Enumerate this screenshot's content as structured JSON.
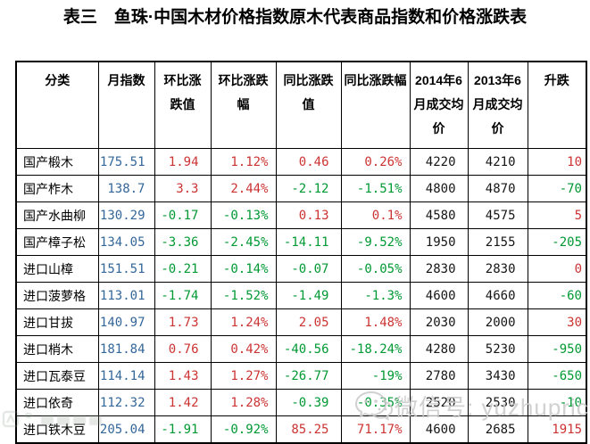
{
  "title": "表三　鱼珠·中国木材价格指数原木代表商品指数和价格涨跌表",
  "table": {
    "header_lines": [
      [
        "分类"
      ],
      [
        "月指数"
      ],
      [
        "环比涨",
        "跌值"
      ],
      [
        "环比涨跌",
        "幅"
      ],
      [
        "同比涨跌",
        "值"
      ],
      [
        "同比涨跌幅"
      ],
      [
        "2014年6",
        "月成交均",
        "价"
      ],
      [
        "2013年6",
        "月成交均",
        "价"
      ],
      [
        "升跌"
      ]
    ],
    "rows": [
      {
        "category": "国产椴木",
        "month_index": "175.51",
        "mom_value": "1.94",
        "mom_pct": "1.12%",
        "yoy_value": "0.46",
        "yoy_pct": "0.26%",
        "price_2014": "4220",
        "price_2013": "4210",
        "change": "10"
      },
      {
        "category": "国产柞木",
        "month_index": "138.7",
        "mom_value": "3.3",
        "mom_pct": "2.44%",
        "yoy_value": "-2.12",
        "yoy_pct": "-1.51%",
        "price_2014": "4800",
        "price_2013": "4870",
        "change": "-70"
      },
      {
        "category": "国产水曲柳",
        "month_index": "130.29",
        "mom_value": "-0.17",
        "mom_pct": "-0.13%",
        "yoy_value": "0.13",
        "yoy_pct": "0.1%",
        "price_2014": "4580",
        "price_2013": "4575",
        "change": "5"
      },
      {
        "category": "国产樟子松",
        "month_index": "134.05",
        "mom_value": "-3.36",
        "mom_pct": "-2.45%",
        "yoy_value": "-14.11",
        "yoy_pct": "-9.52%",
        "price_2014": "1950",
        "price_2013": "2155",
        "change": "-205"
      },
      {
        "category": "进口山樟",
        "month_index": "151.51",
        "mom_value": "-0.21",
        "mom_pct": "-0.14%",
        "yoy_value": "-0.07",
        "yoy_pct": "-0.05%",
        "price_2014": "2830",
        "price_2013": "2830",
        "change": "0"
      },
      {
        "category": "进口菠萝格",
        "month_index": "113.01",
        "mom_value": "-1.74",
        "mom_pct": "-1.52%",
        "yoy_value": "-1.49",
        "yoy_pct": "-1.3%",
        "price_2014": "4600",
        "price_2013": "4660",
        "change": "-60"
      },
      {
        "category": "进口甘拔",
        "month_index": "140.97",
        "mom_value": "1.73",
        "mom_pct": "1.24%",
        "yoy_value": "2.05",
        "yoy_pct": "1.48%",
        "price_2014": "2030",
        "price_2013": "2000",
        "change": "30"
      },
      {
        "category": "进口梢木",
        "month_index": "181.84",
        "mom_value": "0.76",
        "mom_pct": "0.42%",
        "yoy_value": "-40.56",
        "yoy_pct": "-18.24%",
        "price_2014": "4280",
        "price_2013": "5230",
        "change": "-950"
      },
      {
        "category": "进口瓦泰豆",
        "month_index": "114.14",
        "mom_value": "1.43",
        "mom_pct": "1.27%",
        "yoy_value": "-26.77",
        "yoy_pct": "-19%",
        "price_2014": "2780",
        "price_2013": "3430",
        "change": "-650"
      },
      {
        "category": "进口依奇",
        "month_index": "112.32",
        "mom_value": "1.42",
        "mom_pct": "1.28%",
        "yoy_value": "-0.39",
        "yoy_pct": "-0.35%",
        "price_2014": "2520",
        "price_2013": "2530",
        "change": "-10"
      },
      {
        "category": "进口铁木豆",
        "month_index": "205.04",
        "mom_value": "-1.91",
        "mom_pct": "-0.92%",
        "yoy_value": "85.25",
        "yoy_pct": "71.17%",
        "price_2014": "4600",
        "price_2013": "2685",
        "change": "1915"
      }
    ]
  },
  "watermark": {
    "wechat_label": "微信号: yuzhuprice"
  },
  "colors": {
    "index_blue": "#336699",
    "rise_red": "#cc3333",
    "fall_green": "#009933",
    "watermark_gray": "#c9c9c9"
  }
}
